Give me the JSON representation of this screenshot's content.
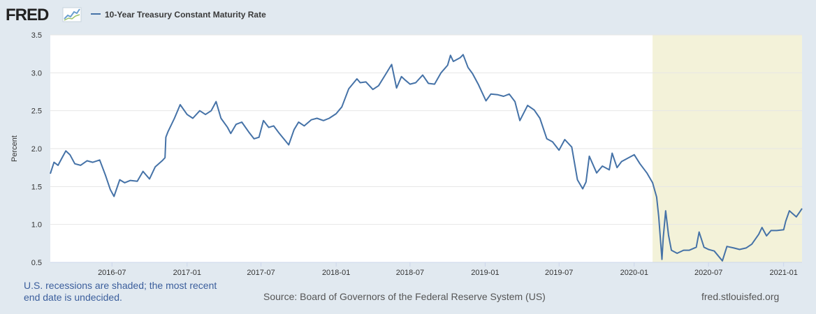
{
  "app": {
    "logo_text": "FRED",
    "logo_icon": "sparkline-chart-icon"
  },
  "colors": {
    "background": "#e1e9f0",
    "series": "#4572a7",
    "recession": "#f3f2d9",
    "note": "#3b5e9c"
  },
  "chart_data": {
    "type": "line",
    "title": "10-Year Treasury Constant Maturity Rate",
    "ylabel": "Percent",
    "xlabel": "",
    "ylim": [
      0.5,
      3.5
    ],
    "y_ticks": [
      0.5,
      1.0,
      1.5,
      2.0,
      2.5,
      3.0,
      3.5
    ],
    "y_tick_labels": [
      "0.5",
      "1.0",
      "1.5",
      "2.0",
      "2.5",
      "3.0",
      "3.5"
    ],
    "xlim": [
      "2016-02-01",
      "2021-02-15"
    ],
    "x_tick_labels": [
      "2016-07",
      "2017-01",
      "2017-07",
      "2018-01",
      "2018-07",
      "2019-01",
      "2019-07",
      "2020-01",
      "2020-07",
      "2021-01"
    ],
    "x_tick_dates": [
      "2016-07-01",
      "2017-01-01",
      "2017-07-01",
      "2018-01-01",
      "2018-07-01",
      "2019-01-01",
      "2019-07-01",
      "2020-01-01",
      "2020-07-01",
      "2021-01-01"
    ],
    "grid": true,
    "recession_shading": [
      {
        "start": "2020-02-15",
        "end": "2021-02-15"
      }
    ],
    "series": [
      {
        "name": "10-Year Treasury Constant Maturity Rate",
        "x": [
          "2016-02-01",
          "2016-02-10",
          "2016-02-20",
          "2016-03-01",
          "2016-03-10",
          "2016-03-20",
          "2016-04-01",
          "2016-04-15",
          "2016-05-01",
          "2016-05-15",
          "2016-06-01",
          "2016-06-15",
          "2016-06-27",
          "2016-07-06",
          "2016-07-20",
          "2016-08-01",
          "2016-08-15",
          "2016-09-01",
          "2016-09-15",
          "2016-10-01",
          "2016-10-15",
          "2016-11-01",
          "2016-11-08",
          "2016-11-10",
          "2016-11-15",
          "2016-12-01",
          "2016-12-15",
          "2017-01-01",
          "2017-01-15",
          "2017-02-01",
          "2017-02-15",
          "2017-03-01",
          "2017-03-13",
          "2017-03-25",
          "2017-04-10",
          "2017-04-18",
          "2017-05-01",
          "2017-05-15",
          "2017-06-01",
          "2017-06-14",
          "2017-06-26",
          "2017-07-07",
          "2017-07-20",
          "2017-08-01",
          "2017-08-15",
          "2017-09-07",
          "2017-09-20",
          "2017-10-01",
          "2017-10-15",
          "2017-11-01",
          "2017-11-15",
          "2017-12-01",
          "2017-12-15",
          "2018-01-01",
          "2018-01-15",
          "2018-02-01",
          "2018-02-21",
          "2018-03-01",
          "2018-03-15",
          "2018-04-01",
          "2018-04-15",
          "2018-05-01",
          "2018-05-17",
          "2018-05-29",
          "2018-06-10",
          "2018-06-20",
          "2018-07-01",
          "2018-07-15",
          "2018-08-01",
          "2018-08-15",
          "2018-08-30",
          "2018-09-15",
          "2018-10-01",
          "2018-10-08",
          "2018-10-15",
          "2018-11-01",
          "2018-11-08",
          "2018-11-20",
          "2018-12-01",
          "2018-12-15",
          "2019-01-03",
          "2019-01-15",
          "2019-02-01",
          "2019-02-15",
          "2019-03-01",
          "2019-03-15",
          "2019-03-27",
          "2019-04-15",
          "2019-05-01",
          "2019-05-15",
          "2019-06-01",
          "2019-06-15",
          "2019-07-01",
          "2019-07-15",
          "2019-08-01",
          "2019-08-15",
          "2019-08-28",
          "2019-09-05",
          "2019-09-13",
          "2019-10-01",
          "2019-10-15",
          "2019-11-01",
          "2019-11-08",
          "2019-11-20",
          "2019-12-01",
          "2019-12-15",
          "2020-01-01",
          "2020-01-15",
          "2020-02-01",
          "2020-02-15",
          "2020-02-25",
          "2020-03-01",
          "2020-03-09",
          "2020-03-12",
          "2020-03-18",
          "2020-03-25",
          "2020-04-01",
          "2020-04-15",
          "2020-05-01",
          "2020-05-15",
          "2020-06-01",
          "2020-06-08",
          "2020-06-20",
          "2020-07-01",
          "2020-07-15",
          "2020-08-04",
          "2020-08-15",
          "2020-09-01",
          "2020-09-15",
          "2020-10-01",
          "2020-10-15",
          "2020-11-01",
          "2020-11-09",
          "2020-11-20",
          "2020-12-01",
          "2020-12-15",
          "2021-01-01",
          "2021-01-06",
          "2021-01-15",
          "2021-02-01",
          "2021-02-10",
          "2021-02-15"
        ],
        "values": [
          1.67,
          1.82,
          1.78,
          1.88,
          1.97,
          1.92,
          1.8,
          1.78,
          1.84,
          1.82,
          1.85,
          1.65,
          1.46,
          1.37,
          1.59,
          1.55,
          1.58,
          1.57,
          1.7,
          1.6,
          1.76,
          1.84,
          1.88,
          2.15,
          2.22,
          2.4,
          2.58,
          2.45,
          2.4,
          2.5,
          2.45,
          2.5,
          2.62,
          2.4,
          2.28,
          2.2,
          2.32,
          2.35,
          2.22,
          2.13,
          2.15,
          2.37,
          2.28,
          2.3,
          2.2,
          2.05,
          2.25,
          2.35,
          2.3,
          2.38,
          2.4,
          2.37,
          2.4,
          2.46,
          2.55,
          2.79,
          2.92,
          2.87,
          2.88,
          2.78,
          2.83,
          2.97,
          3.11,
          2.8,
          2.95,
          2.9,
          2.85,
          2.87,
          2.97,
          2.86,
          2.85,
          3.0,
          3.1,
          3.23,
          3.15,
          3.2,
          3.24,
          3.07,
          2.99,
          2.85,
          2.63,
          2.72,
          2.71,
          2.69,
          2.72,
          2.62,
          2.37,
          2.57,
          2.51,
          2.4,
          2.13,
          2.09,
          1.98,
          2.12,
          2.02,
          1.59,
          1.47,
          1.56,
          1.9,
          1.68,
          1.77,
          1.72,
          1.94,
          1.75,
          1.83,
          1.87,
          1.92,
          1.8,
          1.68,
          1.55,
          1.36,
          1.1,
          0.54,
          0.82,
          1.18,
          0.86,
          0.66,
          0.62,
          0.66,
          0.66,
          0.7,
          0.9,
          0.7,
          0.67,
          0.65,
          0.52,
          0.71,
          0.69,
          0.67,
          0.69,
          0.74,
          0.87,
          0.96,
          0.85,
          0.92,
          0.92,
          0.93,
          1.04,
          1.18,
          1.1,
          1.17,
          1.21
        ]
      }
    ]
  },
  "footer": {
    "recession_note": "U.S. recessions are shaded; the most recent end date is undecided.",
    "source": "Source: Board of Governors of the Federal Reserve System (US)",
    "website": "fred.stlouisfed.org"
  }
}
